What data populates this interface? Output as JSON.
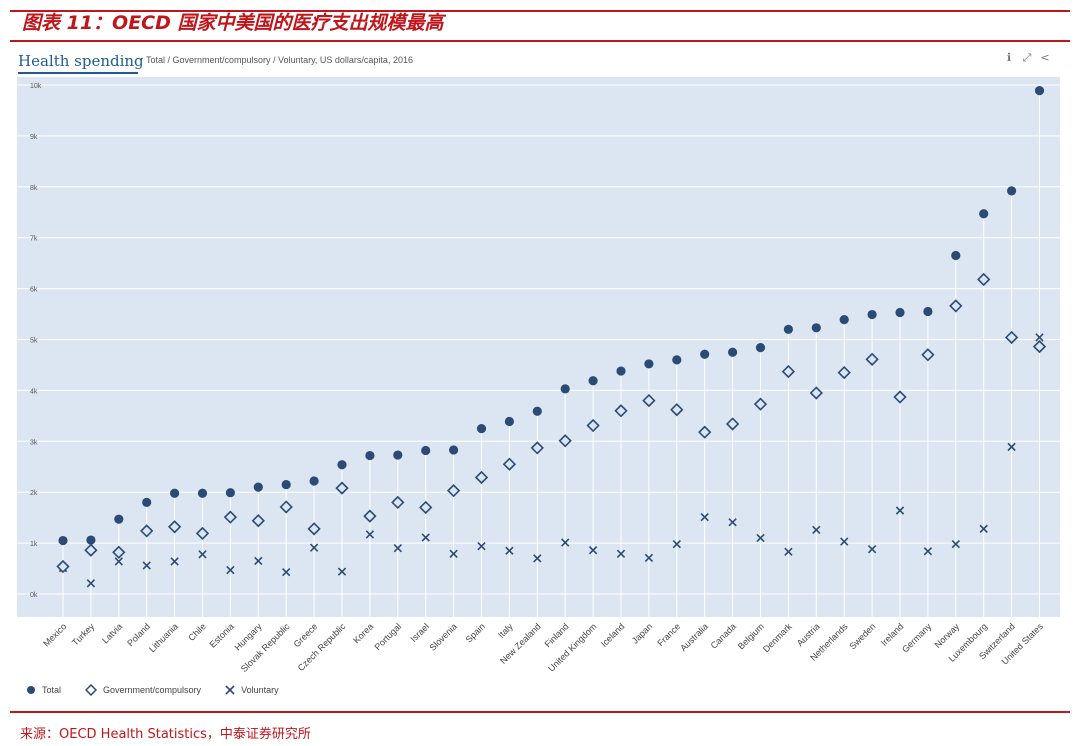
{
  "figure": {
    "title": "图表 11：OECD 国家中美国的医疗支出规模最高",
    "source": "来源：OECD Health Statistics，中泰证券研究所"
  },
  "oecd": {
    "title": "Health spending",
    "subtitle": "Total / Government/compulsory / Voluntary, US dollars/capita, 2016",
    "icons": [
      "info-icon",
      "expand-icon",
      "share-icon"
    ]
  },
  "colors": {
    "accent_red": "#c0161b",
    "plot_bg": "#dbe6f2",
    "series_color": "#2b4a74",
    "title_blue": "#1f5c94"
  },
  "chart_data": {
    "type": "scatter",
    "title": "Health spending",
    "subtitle": "Total / Government/compulsory / Voluntary, US dollars/capita, 2016",
    "ylim": [
      0,
      10000
    ],
    "y_ticks": [
      {
        "value": 0,
        "label": "0k"
      },
      {
        "value": 1000,
        "label": "1k"
      },
      {
        "value": 2000,
        "label": "2k"
      },
      {
        "value": 3000,
        "label": "3k"
      },
      {
        "value": 4000,
        "label": "4k"
      },
      {
        "value": 5000,
        "label": "5k"
      },
      {
        "value": 6000,
        "label": "6k"
      },
      {
        "value": 7000,
        "label": "7k"
      },
      {
        "value": 8000,
        "label": "8k"
      },
      {
        "value": 9000,
        "label": "9k"
      },
      {
        "value": 10000,
        "label": "10k"
      }
    ],
    "grid": true,
    "legend_position": "bottom-left",
    "categories": [
      "Mexico",
      "Turkey",
      "Latvia",
      "Poland",
      "Lithuania",
      "Chile",
      "Estonia",
      "Hungary",
      "Slovak Republic",
      "Greece",
      "Czech Republic",
      "Korea",
      "Portugal",
      "Israel",
      "Slovenia",
      "Spain",
      "Italy",
      "New Zealand",
      "Finland",
      "United Kingdom",
      "Iceland",
      "Japan",
      "France",
      "Australia",
      "Canada",
      "Belgium",
      "Denmark",
      "Austria",
      "Netherlands",
      "Sweden",
      "Ireland",
      "Germany",
      "Norway",
      "Luxembourg",
      "Switzerland",
      "United States"
    ],
    "series": [
      {
        "name": "Total",
        "marker": "circle",
        "values": [
          1050,
          1060,
          1470,
          1800,
          1980,
          1980,
          1990,
          2100,
          2150,
          2220,
          2540,
          2720,
          2730,
          2820,
          2830,
          3250,
          3390,
          3590,
          4030,
          4190,
          4380,
          4520,
          4600,
          4710,
          4750,
          4840,
          5200,
          5230,
          5390,
          5490,
          5530,
          5550,
          6650,
          7470,
          7920,
          9890
        ]
      },
      {
        "name": "Government/compulsory",
        "marker": "diamond",
        "values": [
          540,
          860,
          820,
          1240,
          1320,
          1190,
          1510,
          1440,
          1710,
          1280,
          2080,
          1530,
          1800,
          1700,
          2030,
          2290,
          2550,
          2870,
          3010,
          3310,
          3600,
          3800,
          3620,
          3180,
          3340,
          3730,
          4370,
          3950,
          4350,
          4610,
          3870,
          4700,
          5660,
          6180,
          5040,
          4860
        ]
      },
      {
        "name": "Voluntary",
        "marker": "cross",
        "values": [
          510,
          210,
          640,
          560,
          640,
          780,
          470,
          650,
          430,
          910,
          440,
          1170,
          900,
          1110,
          790,
          940,
          850,
          700,
          1010,
          860,
          790,
          710,
          980,
          1510,
          1410,
          1100,
          830,
          1260,
          1030,
          880,
          1640,
          840,
          980,
          1280,
          2890,
          5040
        ]
      }
    ]
  }
}
